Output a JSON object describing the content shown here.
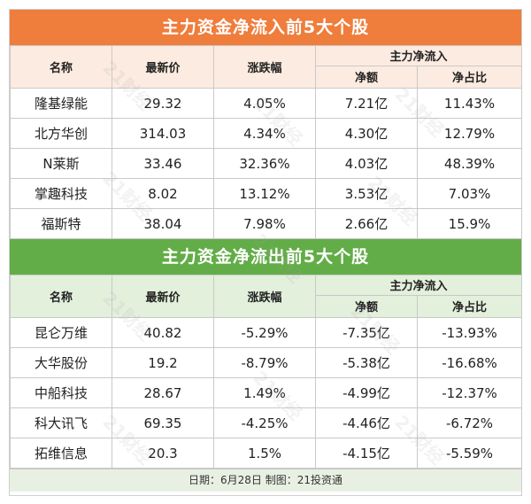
{
  "inflow": {
    "title": "主力资金净流入前5大个股",
    "headers": {
      "name": "名称",
      "price": "最新价",
      "change": "涨跌幅",
      "group": "主力净流入",
      "amount": "净额",
      "ratio": "净占比"
    },
    "rows": [
      {
        "name": "隆基绿能",
        "price": "29.32",
        "change": "4.05%",
        "amount": "7.21亿",
        "ratio": "11.43%"
      },
      {
        "name": "北方华创",
        "price": "314.03",
        "change": "4.34%",
        "amount": "4.30亿",
        "ratio": "12.79%"
      },
      {
        "name": "N莱斯",
        "price": "33.46",
        "change": "32.36%",
        "amount": "4.03亿",
        "ratio": "48.39%"
      },
      {
        "name": "掌趣科技",
        "price": "8.02",
        "change": "13.12%",
        "amount": "3.53亿",
        "ratio": "7.03%"
      },
      {
        "name": "福斯特",
        "price": "38.04",
        "change": "7.98%",
        "amount": "2.66亿",
        "ratio": "15.9%"
      }
    ]
  },
  "outflow": {
    "title": "主力资金净流出前5大个股",
    "headers": {
      "name": "名称",
      "price": "最新价",
      "change": "涨跌幅",
      "group": "主力净流入",
      "amount": "净额",
      "ratio": "净占比"
    },
    "rows": [
      {
        "name": "昆仑万维",
        "price": "40.82",
        "change": "-5.29%",
        "amount": "-7.35亿",
        "ratio": "-13.93%"
      },
      {
        "name": "大华股份",
        "price": "19.2",
        "change": "-8.79%",
        "amount": "-5.38亿",
        "ratio": "-16.68%"
      },
      {
        "name": "中船科技",
        "price": "28.67",
        "change": "1.49%",
        "amount": "-4.99亿",
        "ratio": "-12.37%"
      },
      {
        "name": "科大讯飞",
        "price": "69.35",
        "change": "-4.25%",
        "amount": "-4.46亿",
        "ratio": "-6.72%"
      },
      {
        "name": "拓维信息",
        "price": "20.3",
        "change": "1.5%",
        "amount": "-4.15亿",
        "ratio": "-5.59%"
      }
    ]
  },
  "footer": "日期：6月28日 制图：21投资通",
  "watermark": "21财经",
  "colors": {
    "inflow_banner": "#ef7d3c",
    "inflow_header": "#fcebe0",
    "outflow_banner": "#62ad47",
    "outflow_header": "#e3f0dc"
  }
}
